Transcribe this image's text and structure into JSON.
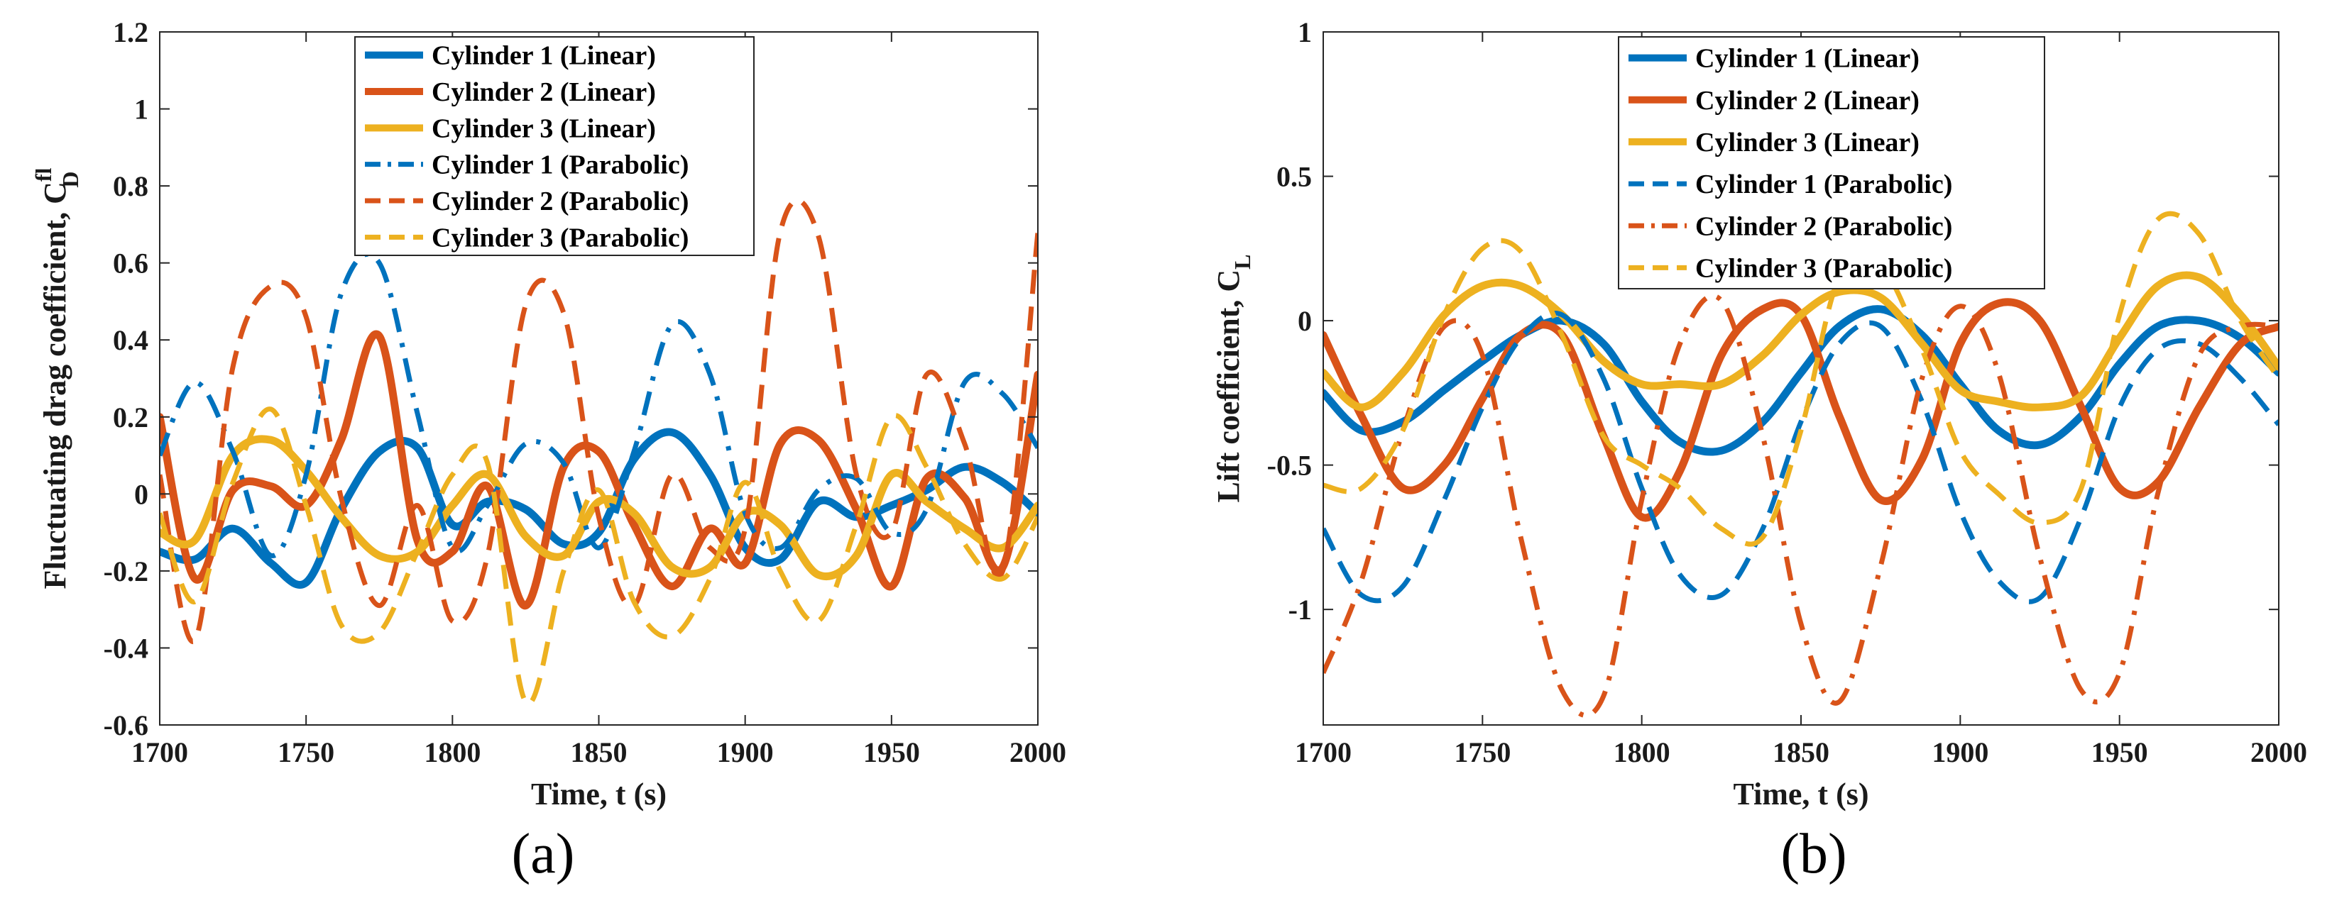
{
  "colors": {
    "c1": "#0072BD",
    "c2": "#D95319",
    "c3": "#EDB120",
    "axis": "#262626",
    "frame": "#ffffff"
  },
  "chart_data": [
    {
      "type": "line",
      "panel_label": "(a)",
      "xlabel": "Time, t (s)",
      "ylabel": "Fluctuating drag coefficient, C",
      "ylabel_sub": "D",
      "ylabel_sup": "fl",
      "xlim": [
        1700,
        2000
      ],
      "ylim": [
        -0.6,
        1.2
      ],
      "xticks": [
        1700,
        1750,
        1800,
        1850,
        1900,
        1950,
        2000
      ],
      "yticks": [
        -0.6,
        -0.4,
        -0.2,
        0,
        0.2,
        0.4,
        0.6,
        0.8,
        1,
        1.2
      ],
      "ytick_labels": [
        "-0.6",
        "-0.4",
        "-0.2",
        "0",
        "0.2",
        "0.4",
        "0.6",
        "0.8",
        "1",
        "1.2"
      ],
      "legend_position": "top-center",
      "series": [
        {
          "name": "Cylinder 1 (Linear)",
          "color_key": "c1",
          "dash": "solid",
          "x": [
            1700,
            1712,
            1725,
            1738,
            1750,
            1762,
            1775,
            1788,
            1800,
            1812,
            1825,
            1838,
            1850,
            1862,
            1875,
            1888,
            1900,
            1912,
            1925,
            1938,
            1950,
            1962,
            1975,
            1988,
            2000
          ],
          "y": [
            -0.15,
            -0.17,
            -0.09,
            -0.18,
            -0.23,
            -0.04,
            0.11,
            0.12,
            -0.08,
            -0.02,
            -0.04,
            -0.13,
            -0.1,
            0.09,
            0.16,
            0.05,
            -0.14,
            -0.17,
            -0.02,
            -0.06,
            -0.03,
            0.01,
            0.07,
            0.03,
            -0.05
          ]
        },
        {
          "name": "Cylinder 2 (Linear)",
          "color_key": "c2",
          "dash": "solid",
          "x": [
            1700,
            1712,
            1725,
            1738,
            1750,
            1762,
            1775,
            1788,
            1800,
            1812,
            1825,
            1838,
            1850,
            1862,
            1875,
            1888,
            1900,
            1912,
            1925,
            1938,
            1950,
            1962,
            1975,
            1988,
            2000
          ],
          "y": [
            0.2,
            -0.22,
            0.01,
            0.02,
            -0.03,
            0.14,
            0.41,
            -0.12,
            -0.15,
            0.02,
            -0.29,
            0.07,
            0.11,
            -0.08,
            -0.24,
            -0.09,
            -0.18,
            0.13,
            0.14,
            -0.04,
            -0.24,
            0.04,
            -0.01,
            -0.19,
            0.31
          ]
        },
        {
          "name": "Cylinder 3 (Linear)",
          "color_key": "c3",
          "dash": "solid",
          "x": [
            1700,
            1712,
            1725,
            1738,
            1750,
            1762,
            1775,
            1788,
            1800,
            1812,
            1825,
            1838,
            1850,
            1862,
            1875,
            1888,
            1900,
            1912,
            1925,
            1938,
            1950,
            1962,
            1975,
            1988,
            2000
          ],
          "y": [
            -0.1,
            -0.12,
            0.1,
            0.14,
            0.06,
            -0.06,
            -0.16,
            -0.15,
            -0.03,
            0.05,
            -0.11,
            -0.16,
            -0.02,
            -0.05,
            -0.19,
            -0.19,
            -0.05,
            -0.08,
            -0.21,
            -0.16,
            0.05,
            -0.02,
            -0.09,
            -0.14,
            -0.03
          ]
        },
        {
          "name": "Cylinder 1 (Parabolic)",
          "color_key": "c1",
          "dash": "dashdot",
          "x": [
            1700,
            1712,
            1725,
            1738,
            1750,
            1762,
            1775,
            1788,
            1800,
            1812,
            1825,
            1838,
            1850,
            1862,
            1875,
            1888,
            1900,
            1912,
            1925,
            1938,
            1950,
            1962,
            1975,
            1988,
            2000
          ],
          "y": [
            0.1,
            0.29,
            0.11,
            -0.16,
            0.05,
            0.52,
            0.6,
            0.21,
            -0.14,
            -0.03,
            0.13,
            0.08,
            -0.14,
            0.11,
            0.44,
            0.31,
            -0.05,
            -0.14,
            0.01,
            0.04,
            -0.1,
            -0.04,
            0.29,
            0.26,
            0.12
          ]
        },
        {
          "name": "Cylinder 2 (Parabolic)",
          "color_key": "c2",
          "dash": "dash",
          "x": [
            1700,
            1712,
            1725,
            1738,
            1750,
            1762,
            1775,
            1788,
            1800,
            1812,
            1825,
            1838,
            1850,
            1862,
            1875,
            1888,
            1900,
            1912,
            1925,
            1938,
            1950,
            1962,
            1975,
            1988,
            2000
          ],
          "y": [
            0.05,
            -0.38,
            0.33,
            0.54,
            0.46,
            -0.01,
            -0.29,
            -0.03,
            -0.33,
            -0.16,
            0.49,
            0.47,
            -0.06,
            -0.29,
            0.05,
            -0.14,
            -0.09,
            0.68,
            0.67,
            0.05,
            -0.1,
            0.31,
            0.13,
            -0.2,
            0.68
          ]
        },
        {
          "name": "Cylinder 3 (Parabolic)",
          "color_key": "c3",
          "dash": "dash",
          "x": [
            1700,
            1712,
            1725,
            1738,
            1750,
            1762,
            1775,
            1788,
            1800,
            1812,
            1825,
            1838,
            1850,
            1862,
            1875,
            1888,
            1900,
            1912,
            1925,
            1938,
            1950,
            1962,
            1975,
            1988,
            2000
          ],
          "y": [
            -0.05,
            -0.28,
            0.03,
            0.22,
            -0.03,
            -0.34,
            -0.36,
            -0.15,
            0.05,
            0.08,
            -0.54,
            -0.2,
            0.01,
            -0.28,
            -0.37,
            -0.22,
            0.03,
            -0.2,
            -0.33,
            -0.08,
            0.2,
            0.07,
            -0.13,
            -0.22,
            -0.06
          ]
        }
      ]
    },
    {
      "type": "line",
      "panel_label": "(b)",
      "xlabel": "Time, t (s)",
      "ylabel": "Lift coefficient, C",
      "ylabel_sub": "L",
      "ylabel_sup": "",
      "xlim": [
        1700,
        2000
      ],
      "ylim": [
        -1.4,
        1
      ],
      "xticks": [
        1700,
        1750,
        1800,
        1850,
        1900,
        1950,
        2000
      ],
      "yticks": [
        -1,
        -0.5,
        0,
        0.5,
        1
      ],
      "ytick_labels": [
        "-1",
        "-0.5",
        "0",
        "0.5",
        "1"
      ],
      "legend_position": "top-center",
      "series": [
        {
          "name": "Cylinder 1 (Linear)",
          "color_key": "c1",
          "dash": "solid",
          "x": [
            1700,
            1712,
            1725,
            1738,
            1750,
            1762,
            1775,
            1788,
            1800,
            1812,
            1825,
            1838,
            1850,
            1862,
            1875,
            1888,
            1900,
            1912,
            1925,
            1938,
            1950,
            1962,
            1975,
            1988,
            2000
          ],
          "y": [
            -0.25,
            -0.38,
            -0.35,
            -0.24,
            -0.14,
            -0.05,
            0,
            -0.08,
            -0.28,
            -0.42,
            -0.45,
            -0.35,
            -0.18,
            -0.02,
            0.04,
            -0.05,
            -0.22,
            -0.38,
            -0.43,
            -0.33,
            -0.15,
            -0.02,
            0,
            -0.06,
            -0.18
          ]
        },
        {
          "name": "Cylinder 2 (Linear)",
          "color_key": "c2",
          "dash": "solid",
          "x": [
            1700,
            1712,
            1725,
            1738,
            1750,
            1762,
            1775,
            1788,
            1800,
            1812,
            1825,
            1838,
            1850,
            1862,
            1875,
            1888,
            1900,
            1912,
            1925,
            1938,
            1950,
            1962,
            1975,
            1988,
            2000
          ],
          "y": [
            -0.05,
            -0.33,
            -0.58,
            -0.5,
            -0.27,
            -0.05,
            -0.05,
            -0.4,
            -0.68,
            -0.52,
            -0.12,
            0.04,
            0.02,
            -0.33,
            -0.62,
            -0.48,
            -0.08,
            0.06,
            0,
            -0.3,
            -0.58,
            -0.56,
            -0.3,
            -0.08,
            -0.02
          ]
        },
        {
          "name": "Cylinder 3 (Linear)",
          "color_key": "c3",
          "dash": "solid",
          "x": [
            1700,
            1712,
            1725,
            1738,
            1750,
            1762,
            1775,
            1788,
            1800,
            1812,
            1825,
            1838,
            1850,
            1862,
            1875,
            1888,
            1900,
            1912,
            1925,
            1938,
            1950,
            1962,
            1975,
            1988,
            2000
          ],
          "y": [
            -0.18,
            -0.3,
            -0.18,
            0.02,
            0.12,
            0.12,
            0.02,
            -0.14,
            -0.22,
            -0.22,
            -0.22,
            -0.12,
            0.02,
            0.1,
            0.08,
            -0.08,
            -0.24,
            -0.28,
            -0.3,
            -0.26,
            -0.06,
            0.12,
            0.15,
            0.02,
            -0.16
          ]
        },
        {
          "name": "Cylinder 1 (Parabolic)",
          "color_key": "c1",
          "dash": "dash",
          "x": [
            1700,
            1712,
            1725,
            1738,
            1750,
            1762,
            1775,
            1788,
            1800,
            1812,
            1825,
            1838,
            1850,
            1862,
            1875,
            1888,
            1900,
            1912,
            1925,
            1938,
            1950,
            1962,
            1975,
            1988,
            2000
          ],
          "y": [
            -0.72,
            -0.95,
            -0.92,
            -0.62,
            -0.3,
            -0.06,
            0.02,
            -0.2,
            -0.58,
            -0.88,
            -0.95,
            -0.72,
            -0.35,
            -0.08,
            -0.02,
            -0.28,
            -0.66,
            -0.9,
            -0.96,
            -0.68,
            -0.3,
            -0.1,
            -0.08,
            -0.2,
            -0.36
          ]
        },
        {
          "name": "Cylinder 2 (Parabolic)",
          "color_key": "c2",
          "dash": "dashdot",
          "x": [
            1700,
            1712,
            1725,
            1738,
            1750,
            1762,
            1775,
            1788,
            1800,
            1812,
            1825,
            1838,
            1850,
            1862,
            1875,
            1888,
            1900,
            1912,
            1925,
            1938,
            1950,
            1962,
            1975,
            1988,
            2000
          ],
          "y": [
            -1.22,
            -0.9,
            -0.38,
            -0.02,
            -0.12,
            -0.75,
            -1.28,
            -1.3,
            -0.62,
            -0.08,
            0.07,
            -0.4,
            -1.05,
            -1.32,
            -0.85,
            -0.2,
            0.05,
            -0.18,
            -0.82,
            -1.28,
            -1.22,
            -0.6,
            -0.12,
            -0.02,
            -0.02
          ]
        },
        {
          "name": "Cylinder 3 (Parabolic)",
          "color_key": "c3",
          "dash": "dash",
          "x": [
            1700,
            1712,
            1725,
            1738,
            1750,
            1762,
            1775,
            1788,
            1800,
            1812,
            1825,
            1838,
            1850,
            1862,
            1875,
            1888,
            1900,
            1912,
            1925,
            1938,
            1950,
            1962,
            1975,
            1988,
            2000
          ],
          "y": [
            -0.57,
            -0.58,
            -0.38,
            0.02,
            0.25,
            0.24,
            -0.05,
            -0.4,
            -0.5,
            -0.58,
            -0.72,
            -0.75,
            -0.38,
            0.15,
            0.19,
            -0.1,
            -0.45,
            -0.6,
            -0.7,
            -0.58,
            0.02,
            0.35,
            0.3,
            0.0,
            -0.2
          ]
        }
      ]
    }
  ]
}
